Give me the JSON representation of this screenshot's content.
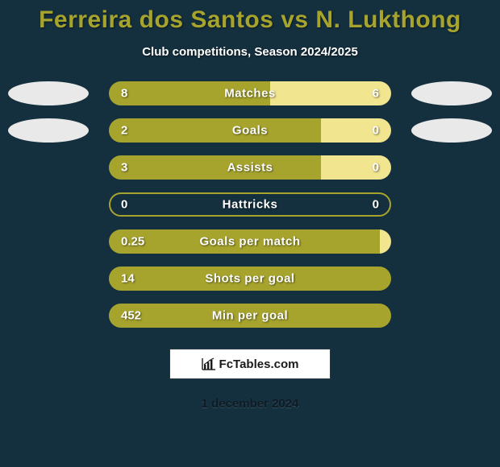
{
  "background_color": "#14303f",
  "title": {
    "text": "Ferreira dos Santos vs N. Lukthong",
    "color": "#a7a42e",
    "fontsize": 30
  },
  "subtitle": {
    "text": "Club competitions, Season 2024/2025",
    "color": "#ffffff",
    "fontsize": 15
  },
  "avatar_color": "#e9e9e9",
  "bar_left_color": "#a7a42e",
  "bar_right_color": "#f2e58f",
  "bar_single_color": "#a7a42e",
  "stats": [
    {
      "label": "Matches",
      "left_value": "8",
      "right_value": "6",
      "left_pct": 57,
      "right_pct": 43,
      "show_avatars": true
    },
    {
      "label": "Goals",
      "left_value": "2",
      "right_value": "0",
      "left_pct": 75,
      "right_pct": 25,
      "show_avatars": true
    },
    {
      "label": "Assists",
      "left_value": "3",
      "right_value": "0",
      "left_pct": 75,
      "right_pct": 25,
      "show_avatars": false
    },
    {
      "label": "Hattricks",
      "left_value": "0",
      "right_value": "0",
      "left_pct": 50,
      "right_pct": 50,
      "show_avatars": false,
      "zero_zero": true
    },
    {
      "label": "Goals per match",
      "left_value": "0.25",
      "right_value": null,
      "left_pct": 96,
      "right_pct": 4,
      "show_avatars": false,
      "single": true
    },
    {
      "label": "Shots per goal",
      "left_value": "14",
      "right_value": null,
      "left_pct": 100,
      "right_pct": 0,
      "show_avatars": false,
      "single": true
    },
    {
      "label": "Min per goal",
      "left_value": "452",
      "right_value": null,
      "left_pct": 100,
      "right_pct": 0,
      "show_avatars": false,
      "single": true
    }
  ],
  "attribution": {
    "text": "FcTables.com",
    "border_color": "#2a3a45",
    "background": "#ffffff",
    "icon_name": "chart-icon"
  },
  "date": {
    "text": "1 december 2024",
    "color": "#0e1b24",
    "fontsize": 15
  }
}
